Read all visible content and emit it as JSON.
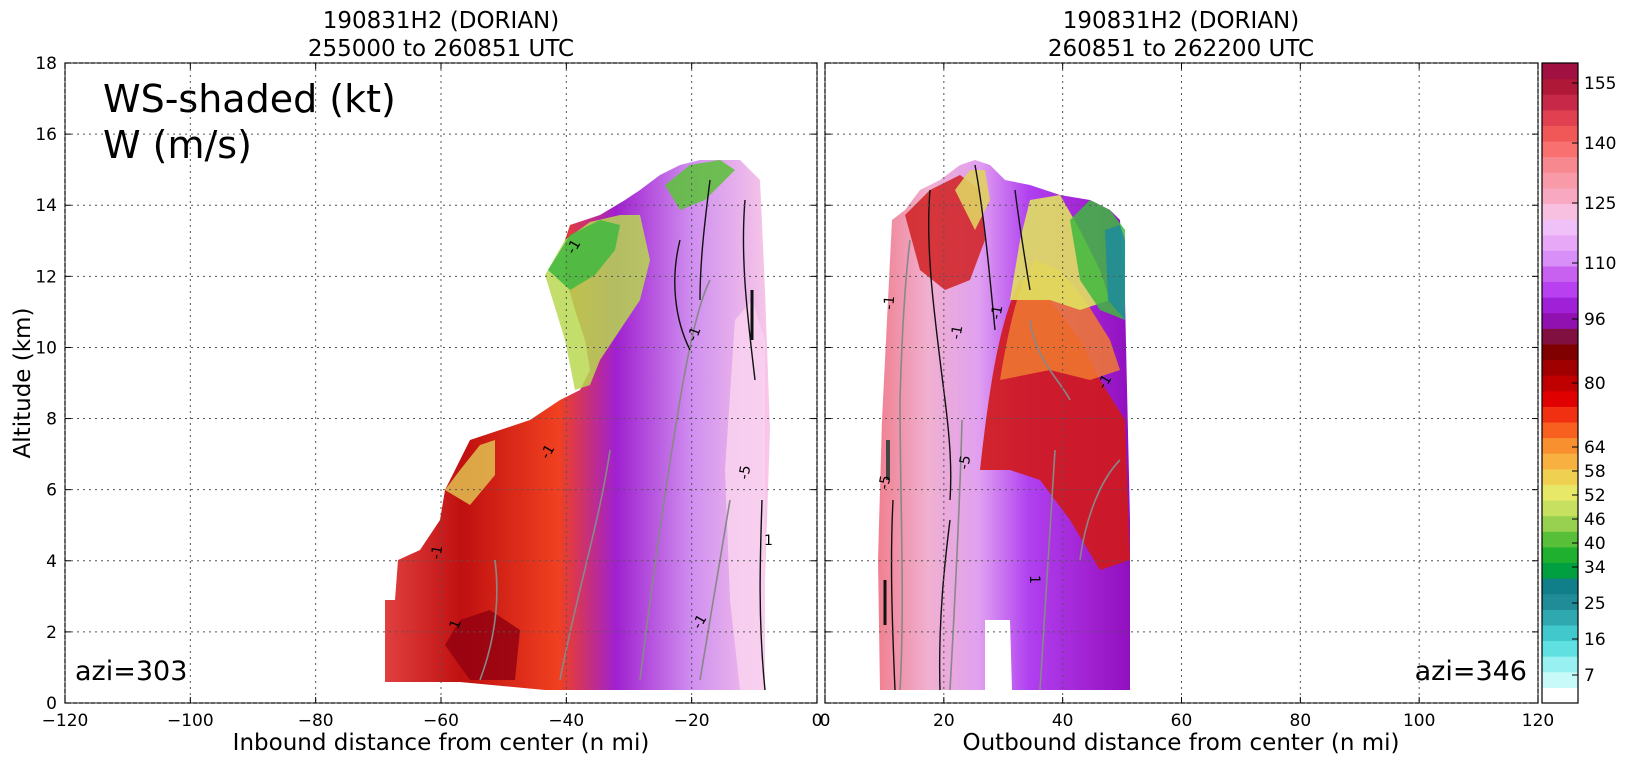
{
  "chart_data": [
    {
      "type": "heatmap",
      "title": "190831H2 (DORIAN)",
      "subtitle": "255000 to 260851 UTC",
      "xlabel": "Inbound distance from center (n mi)",
      "ylabel": "Altitude (km)",
      "xlim": [
        -120,
        0
      ],
      "ylim": [
        0,
        18
      ],
      "xticks": [
        "−120",
        "−100",
        "−80",
        "−60",
        "−40",
        "−20",
        "0"
      ],
      "xtick_values": [
        -120,
        -100,
        -80,
        -60,
        -40,
        -20,
        0
      ],
      "yticks": [
        "0",
        "2",
        "4",
        "6",
        "8",
        "10",
        "12",
        "14",
        "16",
        "18"
      ],
      "ytick_values": [
        0,
        2,
        4,
        6,
        8,
        10,
        12,
        14,
        16,
        18
      ],
      "grid": true,
      "annotation_main": [
        "WS-shaded (kt)",
        "W (m/s)"
      ],
      "annotation_corner": "azi=303",
      "contour_labels": [
        "-1",
        "-1",
        "-1",
        "-1",
        "-5",
        "-1",
        "1",
        "1"
      ],
      "data_extent": {
        "x": [
          -70,
          -8
        ],
        "y": [
          0.3,
          15.3
        ]
      }
    },
    {
      "type": "heatmap",
      "title": "190831H2 (DORIAN)",
      "subtitle": "260851 to 262200 UTC",
      "xlabel": "Outbound distance from center (n mi)",
      "ylabel": "",
      "xlim": [
        0,
        120
      ],
      "ylim": [
        0,
        18
      ],
      "xticks": [
        "0",
        "20",
        "40",
        "60",
        "80",
        "100",
        "120"
      ],
      "xtick_values": [
        0,
        20,
        40,
        60,
        80,
        100,
        120
      ],
      "grid": true,
      "annotation_corner": "azi=346",
      "contour_labels": [
        "-1",
        "-1",
        "-5",
        "-5",
        "1",
        "-1",
        "-1"
      ],
      "data_extent": {
        "x": [
          8,
          52
        ],
        "y": [
          0.3,
          15.4
        ]
      }
    }
  ],
  "colorbar": {
    "tick_labels": [
      "155",
      "140",
      "125",
      "110",
      "96",
      "80",
      "64",
      "58",
      "52",
      "46",
      "40",
      "34",
      "25",
      "16",
      "7"
    ],
    "tick_values": [
      155,
      140,
      125,
      110,
      96,
      80,
      64,
      58,
      52,
      46,
      40,
      34,
      25,
      16,
      7
    ],
    "colors_bottom_to_top": [
      "#ffffff",
      "#c8fafa",
      "#98f0f0",
      "#60e0e0",
      "#40c8cc",
      "#30a8b0",
      "#208c98",
      "#107f8a",
      "#00a040",
      "#20b030",
      "#58c038",
      "#98d050",
      "#c8e060",
      "#e8e868",
      "#f0d050",
      "#f8b040",
      "#f89030",
      "#f86020",
      "#f03010",
      "#e00000",
      "#c00000",
      "#a00000",
      "#800000",
      "#801040",
      "#9010b0",
      "#a020d8",
      "#b840f0",
      "#c860f0",
      "#d890f8",
      "#e8a8f8",
      "#f0c0f8",
      "#f8c0e0",
      "#f8a8c0",
      "#f89aa8",
      "#f88890",
      "#f87070",
      "#f05858",
      "#e04050",
      "#c82848",
      "#b01838",
      "#a01040"
    ]
  }
}
